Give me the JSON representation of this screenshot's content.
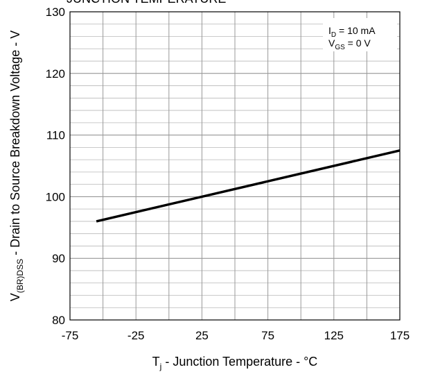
{
  "chart_data": {
    "type": "line",
    "title": "JUNCTION TEMPERATURE",
    "xlabel": "T",
    "xlabel_sub": "j",
    "xlabel_rest": " - Junction Temperature - °C",
    "ylabel": "V",
    "ylabel_sub": "(BR)DSS",
    "ylabel_rest": " - Drain to Source Breakdown Voltage - V",
    "xlim": [
      -75,
      175
    ],
    "ylim": [
      80,
      130
    ],
    "xticks": [
      -75,
      -25,
      25,
      75,
      125,
      175
    ],
    "yticks": [
      80,
      90,
      100,
      110,
      120,
      130
    ],
    "x_minor_step": 25,
    "y_minor_step": 2,
    "grid": true,
    "annotations": [
      {
        "main": "I",
        "sub": "D",
        "rest": " = 10 mA"
      },
      {
        "main": "V",
        "sub": "GS",
        "rest": " = 0 V"
      }
    ],
    "series": [
      {
        "x": [
          -55,
          175
        ],
        "y": [
          96,
          107.5
        ]
      }
    ]
  }
}
